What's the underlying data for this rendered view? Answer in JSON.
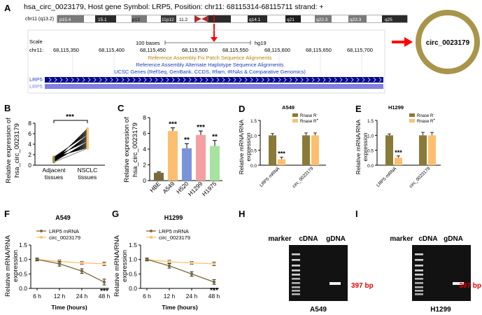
{
  "panelA": {
    "letter": "A",
    "title": "hsa_circ_0023179, Host gene Symbol: LRP5, Position: chr11: 68115314-68115711 strand: +",
    "chrom_label": "chr11 (q13.2)",
    "bands": [
      "p15.4",
      "15.1",
      "p13",
      "11p12",
      "11.2",
      "q14.1",
      "q21",
      "q22.3",
      "q23.3",
      "q25"
    ],
    "scale_label": "Scale",
    "scale_text": "100 bases",
    "genome": "hg19",
    "chr_label": "chr11:",
    "positions": [
      "68,115,350",
      "68,115,400",
      "68,115,450",
      "68,115,500",
      "68,115,550",
      "68,115,600",
      "68,115,650",
      "68,115,700"
    ],
    "track1": "Reference Assembly Fix Patch Sequence Alignments",
    "track2": "Reference Assembly Alternate Haplotype Sequence Alignments",
    "track3": "UCSC Genes (RefSeq, GenBank, CCDS, Rfam, tRNAs & Comparative Genomics)",
    "gene1": "LRP5",
    "gene2": "LRP5",
    "circ_label": "circ_0023179"
  },
  "panelB": {
    "letter": "B",
    "chart_data": {
      "type": "scatter",
      "ylabel_lines": [
        "Relative expression of",
        "hsa_circ_0023179"
      ],
      "categories": [
        "Adjacent tissues",
        "NSCLC tissues"
      ],
      "cat_lines": [
        [
          "Adjacent",
          "tissues"
        ],
        [
          "NSCLC",
          "tissues"
        ]
      ],
      "yticks": [
        0,
        2,
        4,
        6,
        8
      ],
      "ylim": [
        0,
        8
      ],
      "adjacent_range": [
        0.6,
        1.6
      ],
      "nsclc_range": [
        3.2,
        7.0
      ],
      "paired_samples": 40,
      "significance": "***"
    }
  },
  "panelC": {
    "letter": "C",
    "chart_data": {
      "type": "bar",
      "ylabel_lines": [
        "Relative expression of",
        "hsa_circ_0023179"
      ],
      "categories": [
        "HBE",
        "A549",
        "H520",
        "H1299",
        "H1975"
      ],
      "values": [
        1.0,
        6.3,
        4.1,
        5.8,
        4.4
      ],
      "errors": [
        0.1,
        0.4,
        0.6,
        0.5,
        0.7
      ],
      "sig": [
        "",
        "***",
        "**",
        "***",
        "**"
      ],
      "colors": [
        "#7a6a3a",
        "#fdbf6f",
        "#7b93d8",
        "#f4a0a0",
        "#a6e3a1"
      ],
      "yticks": [
        0,
        2,
        4,
        6,
        8
      ],
      "ylim": [
        0,
        8
      ]
    }
  },
  "panelD": {
    "letter": "D",
    "chart_data": {
      "type": "bar",
      "title": "A549",
      "ylabel_lines": [
        "Relative mRNA/RNA",
        "expression"
      ],
      "categories": [
        "LRP5 mRNA",
        "circ_0023179"
      ],
      "series": [
        {
          "name": "Rnase R",
          "sup": "-",
          "color": "#8a7a3a",
          "values": [
            1.0,
            1.0
          ],
          "errors": [
            0.06,
            0.08
          ]
        },
        {
          "name": "Rnase R",
          "sup": "+",
          "color": "#fdbf6f",
          "values": [
            0.2,
            1.0
          ],
          "errors": [
            0.07,
            0.08
          ]
        }
      ],
      "sig": "***",
      "yticks": [
        "0.0",
        "0.5",
        "1.0",
        "1.5"
      ],
      "ylim": [
        0,
        1.5
      ]
    }
  },
  "panelE": {
    "letter": "E",
    "chart_data": {
      "type": "bar",
      "title": "H1299",
      "ylabel_lines": [
        "Relative mRNA/RNA",
        "expression"
      ],
      "categories": [
        "LRP5 mRNA",
        "circ_0023179"
      ],
      "series": [
        {
          "name": "Rnase R",
          "sup": "-",
          "color": "#8a7a3a",
          "values": [
            1.0,
            1.0
          ],
          "errors": [
            0.05,
            0.1
          ]
        },
        {
          "name": "Rnase R",
          "sup": "+",
          "color": "#fdbf6f",
          "values": [
            0.25,
            1.0
          ],
          "errors": [
            0.06,
            0.1
          ]
        }
      ],
      "sig": "***",
      "yticks": [
        "0.0",
        "0.5",
        "1.0",
        "1.5"
      ],
      "ylim": [
        0,
        1.5
      ]
    }
  },
  "panelF": {
    "letter": "F",
    "chart_data": {
      "type": "line",
      "title": "A549",
      "ylabel_lines": [
        "Relative mRNA/RNA",
        "expression"
      ],
      "xlabel": "Time (hours)",
      "categories": [
        "6 h",
        "12 h",
        "24 h",
        "48 h"
      ],
      "series": [
        {
          "name": "LRP5 mRNA",
          "color": "#7a6a3a",
          "values": [
            1.0,
            0.85,
            0.6,
            0.22
          ],
          "errors": [
            0.05,
            0.08,
            0.08,
            0.1
          ]
        },
        {
          "name": "circ_0023179",
          "color": "#fdbf6f",
          "values": [
            1.0,
            0.93,
            0.88,
            0.85
          ],
          "errors": [
            0.04,
            0.05,
            0.05,
            0.06
          ]
        }
      ],
      "sig": "***",
      "yticks": [
        "0.0",
        "0.5",
        "1.0",
        "1.5"
      ],
      "ylim": [
        0,
        1.5
      ]
    }
  },
  "panelG": {
    "letter": "G",
    "chart_data": {
      "type": "line",
      "title": "H1299",
      "ylabel_lines": [
        "Relative mRNA/RNA",
        "expression"
      ],
      "xlabel": "Time (hours)",
      "categories": [
        "6 h",
        "12 h",
        "24 h",
        "48 h"
      ],
      "series": [
        {
          "name": "LRP5 mRNA",
          "color": "#7a6a3a",
          "values": [
            1.0,
            0.78,
            0.5,
            0.22
          ],
          "errors": [
            0.05,
            0.08,
            0.08,
            0.08
          ]
        },
        {
          "name": "circ_0023179",
          "color": "#fdbf6f",
          "values": [
            1.0,
            0.92,
            0.88,
            0.85
          ],
          "errors": [
            0.04,
            0.05,
            0.05,
            0.06
          ]
        }
      ],
      "sig": "***",
      "yticks": [
        "0.0",
        "0.5",
        "1.0",
        "1.5"
      ],
      "ylim": [
        0,
        1.5
      ]
    }
  },
  "panelH": {
    "letter": "H",
    "lanes": [
      "marker",
      "cDNA",
      "gDNA"
    ],
    "bp": "397 bp",
    "cell": "A549"
  },
  "panelI": {
    "letter": "I",
    "lanes": [
      "marker",
      "cDNA",
      "gDNA"
    ],
    "bp": "397 bp",
    "cell": "H1299"
  }
}
